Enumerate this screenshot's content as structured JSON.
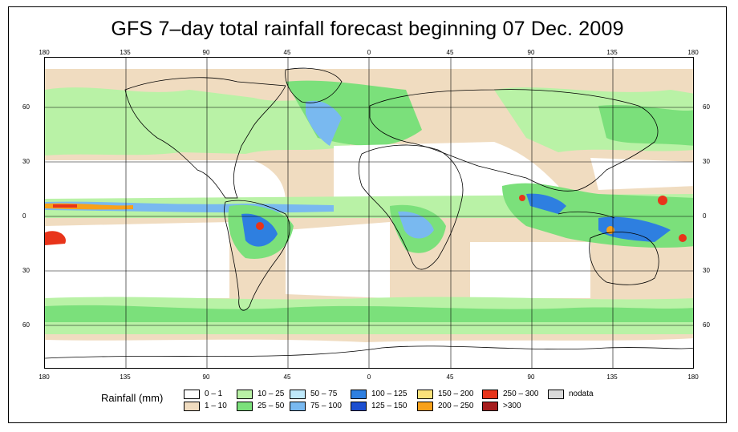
{
  "title": "GFS 7–day total rainfall forecast beginning 07 Dec. 2009",
  "lon_ticks": [
    "180",
    "135",
    "90",
    "45",
    "0",
    "45",
    "90",
    "135",
    "180"
  ],
  "lat_ticks": [
    "60",
    "30",
    "0",
    "30",
    "60"
  ],
  "legend": {
    "title": "Rainfall (mm)",
    "items": [
      {
        "label": "0 – 1",
        "color": "#ffffff"
      },
      {
        "label": "1 – 10",
        "color": "#f0dcc0"
      },
      {
        "label": "10 – 25",
        "color": "#b9f2a6"
      },
      {
        "label": "25 – 50",
        "color": "#7be07b"
      },
      {
        "label": "50 – 75",
        "color": "#bfe9fb"
      },
      {
        "label": "75 – 100",
        "color": "#79b9f0"
      },
      {
        "label": "100 – 125",
        "color": "#2e7fe0"
      },
      {
        "label": "125 – 150",
        "color": "#1c4fd0"
      },
      {
        "label": "150 – 200",
        "color": "#fbe27a"
      },
      {
        "label": "200 – 250",
        "color": "#f8a11a"
      },
      {
        "label": "250 – 300",
        "color": "#e8341a"
      },
      {
        "label": ">300",
        "color": "#a51c1c"
      },
      {
        "label": "nodata",
        "color": "#d9d9d9"
      }
    ]
  },
  "colors": {
    "grid": "#000000",
    "coast": "#000000"
  }
}
